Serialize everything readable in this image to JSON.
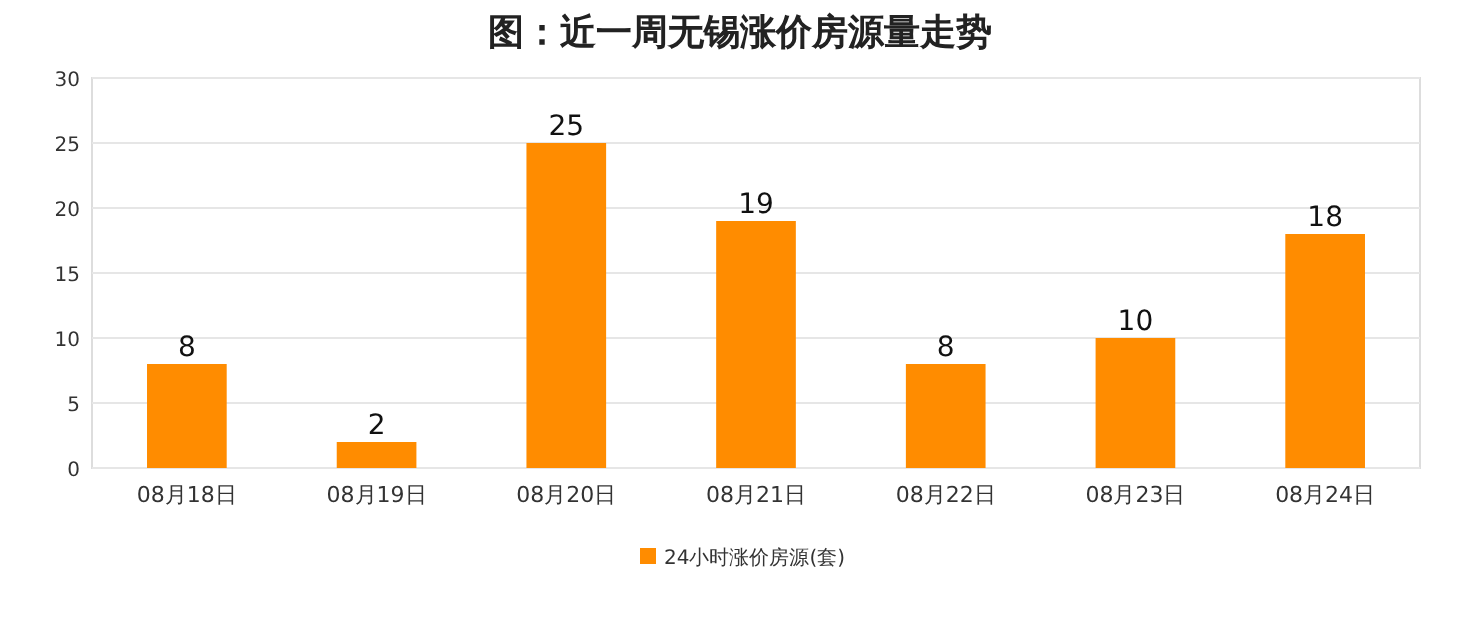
{
  "chart_data": {
    "type": "bar",
    "title": "图：近一周无锡涨价房源量走势",
    "categories": [
      "08月18日",
      "08月19日",
      "08月20日",
      "08月21日",
      "08月22日",
      "08月23日",
      "08月24日"
    ],
    "series": [
      {
        "name": "24小时涨价房源(套)",
        "color": "#ff8c00",
        "values": [
          8,
          2,
          25,
          19,
          8,
          10,
          18
        ]
      }
    ],
    "ylim": [
      0,
      30
    ],
    "yticks": [
      0,
      5,
      10,
      15,
      20,
      25,
      30
    ],
    "grid": "y",
    "legend": "bottom",
    "data_labels": true
  }
}
